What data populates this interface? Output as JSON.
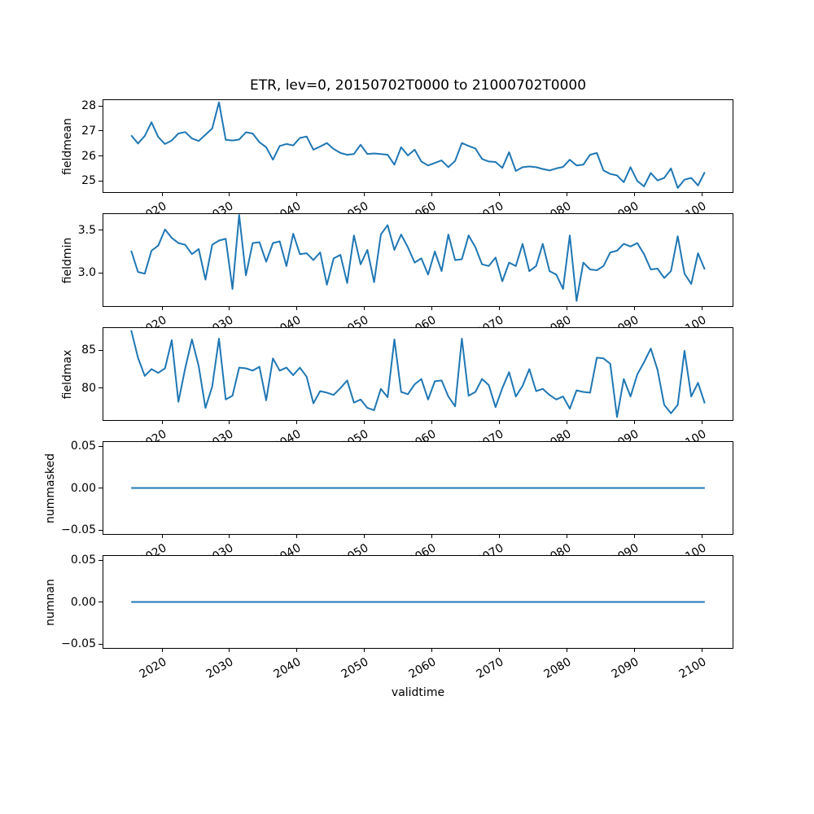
{
  "title": "ETR, lev=0, 20150702T0000 to 21000702T0000",
  "line_color": "#1f77b4",
  "x_axis": {
    "label": "validtime",
    "tick_labels": [
      "2020",
      "2030",
      "2040",
      "2050",
      "2060",
      "2070",
      "2080",
      "2090",
      "2100"
    ],
    "tick_values": [
      2020,
      2030,
      2040,
      2050,
      2060,
      2070,
      2080,
      2090,
      2100
    ],
    "xlim": [
      2011.25,
      2104.75
    ]
  },
  "chart_data": [
    {
      "type": "line",
      "name": "fieldmean",
      "ylabel": "fieldmean",
      "x_start": 2015,
      "x_step": 1,
      "x_offset": 0.5,
      "ylim": [
        24.52,
        28.27
      ],
      "ytick_values": [
        25,
        26,
        27,
        28
      ],
      "ytick_labels": [
        "25",
        "26",
        "27",
        "28"
      ],
      "values": [
        26.83,
        26.5,
        26.8,
        27.35,
        26.76,
        26.48,
        26.62,
        26.9,
        26.96,
        26.7,
        26.6,
        26.85,
        27.1,
        28.15,
        26.65,
        26.62,
        26.66,
        26.95,
        26.9,
        26.55,
        26.35,
        25.85,
        26.4,
        26.48,
        26.42,
        26.72,
        26.78,
        26.25,
        26.38,
        26.52,
        26.28,
        26.12,
        26.05,
        26.08,
        26.45,
        26.08,
        26.1,
        26.08,
        26.05,
        25.65,
        26.35,
        26.02,
        26.25,
        25.78,
        25.62,
        25.72,
        25.82,
        25.55,
        25.8,
        26.52,
        26.4,
        26.3,
        25.88,
        25.78,
        25.76,
        25.52,
        26.15,
        25.4,
        25.55,
        25.58,
        25.55,
        25.48,
        25.42,
        25.5,
        25.56,
        25.85,
        25.62,
        25.65,
        26.05,
        26.12,
        25.42,
        25.28,
        25.22,
        24.95,
        25.55,
        25.0,
        24.78,
        25.32,
        25.02,
        25.12,
        25.5,
        24.72,
        25.05,
        25.12,
        24.82,
        25.35
      ]
    },
    {
      "type": "line",
      "name": "fieldmin",
      "ylabel": "fieldmin",
      "x_start": 2015,
      "x_step": 1,
      "x_offset": 0.5,
      "ylim": [
        2.6,
        3.7
      ],
      "ytick_values": [
        3.0,
        3.5
      ],
      "ytick_labels": [
        "3.0",
        "3.5"
      ],
      "values": [
        3.26,
        3.01,
        2.99,
        3.26,
        3.32,
        3.51,
        3.41,
        3.35,
        3.33,
        3.22,
        3.28,
        2.92,
        3.33,
        3.38,
        3.4,
        2.81,
        3.68,
        2.97,
        3.35,
        3.36,
        3.13,
        3.35,
        3.37,
        3.08,
        3.46,
        3.22,
        3.23,
        3.15,
        3.24,
        2.86,
        3.17,
        3.21,
        2.88,
        3.44,
        3.1,
        3.27,
        2.89,
        3.45,
        3.56,
        3.27,
        3.45,
        3.3,
        3.12,
        3.17,
        2.98,
        3.25,
        3.02,
        3.45,
        3.15,
        3.16,
        3.44,
        3.3,
        3.1,
        3.08,
        3.18,
        2.9,
        3.12,
        3.08,
        3.34,
        3.02,
        3.08,
        3.34,
        3.02,
        2.98,
        2.81,
        3.44,
        2.67,
        3.12,
        3.04,
        3.03,
        3.08,
        3.24,
        3.26,
        3.34,
        3.31,
        3.35,
        3.22,
        3.04,
        3.05,
        2.94,
        3.02,
        3.43,
        2.99,
        2.87,
        3.23,
        3.04
      ]
    },
    {
      "type": "line",
      "name": "fieldmax",
      "ylabel": "fieldmax",
      "x_start": 2015,
      "x_step": 1,
      "x_offset": 0.5,
      "ylim": [
        75.7,
        88.0
      ],
      "ytick_values": [
        80,
        85
      ],
      "ytick_labels": [
        "80",
        "85"
      ],
      "values": [
        87.6,
        84.0,
        81.6,
        82.5,
        82.0,
        82.6,
        86.3,
        78.2,
        82.6,
        86.4,
        82.9,
        77.4,
        80.2,
        86.5,
        78.5,
        79.0,
        82.7,
        82.6,
        82.3,
        82.8,
        78.4,
        83.9,
        82.3,
        82.7,
        81.7,
        82.7,
        81.5,
        78.0,
        79.6,
        79.4,
        79.1,
        80.0,
        81.0,
        78.1,
        78.5,
        77.4,
        77.1,
        79.9,
        78.8,
        86.4,
        79.5,
        79.2,
        80.5,
        81.2,
        78.5,
        80.9,
        81.0,
        78.9,
        77.6,
        86.5,
        79.0,
        79.5,
        81.2,
        80.4,
        77.5,
        80.0,
        82.1,
        78.9,
        80.3,
        82.5,
        79.6,
        79.9,
        79.1,
        78.5,
        78.9,
        77.3,
        79.7,
        79.5,
        79.4,
        84.0,
        83.9,
        83.2,
        76.2,
        81.2,
        78.9,
        81.8,
        83.4,
        85.2,
        82.4,
        77.8,
        76.7,
        77.8,
        84.9,
        78.9,
        80.7,
        78.0
      ]
    },
    {
      "type": "line",
      "name": "nummasked",
      "ylabel": "nummasked",
      "x_start": 2015,
      "x_step": 1,
      "x_offset": 0.5,
      "ylim": [
        -0.0558,
        0.0558
      ],
      "ytick_values": [
        -0.05,
        0.0,
        0.05
      ],
      "ytick_labels": [
        "−0.05",
        "0.00",
        "0.05"
      ],
      "values": [
        0,
        0,
        0,
        0,
        0,
        0,
        0,
        0,
        0,
        0,
        0,
        0,
        0,
        0,
        0,
        0,
        0,
        0,
        0,
        0,
        0,
        0,
        0,
        0,
        0,
        0,
        0,
        0,
        0,
        0,
        0,
        0,
        0,
        0,
        0,
        0,
        0,
        0,
        0,
        0,
        0,
        0,
        0,
        0,
        0,
        0,
        0,
        0,
        0,
        0,
        0,
        0,
        0,
        0,
        0,
        0,
        0,
        0,
        0,
        0,
        0,
        0,
        0,
        0,
        0,
        0,
        0,
        0,
        0,
        0,
        0,
        0,
        0,
        0,
        0,
        0,
        0,
        0,
        0,
        0,
        0,
        0,
        0,
        0,
        0,
        0
      ]
    },
    {
      "type": "line",
      "name": "numnan",
      "ylabel": "numnan",
      "x_start": 2015,
      "x_step": 1,
      "x_offset": 0.5,
      "ylim": [
        -0.0558,
        0.0558
      ],
      "ytick_values": [
        -0.05,
        0.0,
        0.05
      ],
      "ytick_labels": [
        "−0.05",
        "0.00",
        "0.05"
      ],
      "values": [
        0,
        0,
        0,
        0,
        0,
        0,
        0,
        0,
        0,
        0,
        0,
        0,
        0,
        0,
        0,
        0,
        0,
        0,
        0,
        0,
        0,
        0,
        0,
        0,
        0,
        0,
        0,
        0,
        0,
        0,
        0,
        0,
        0,
        0,
        0,
        0,
        0,
        0,
        0,
        0,
        0,
        0,
        0,
        0,
        0,
        0,
        0,
        0,
        0,
        0,
        0,
        0,
        0,
        0,
        0,
        0,
        0,
        0,
        0,
        0,
        0,
        0,
        0,
        0,
        0,
        0,
        0,
        0,
        0,
        0,
        0,
        0,
        0,
        0,
        0,
        0,
        0,
        0,
        0,
        0,
        0,
        0,
        0,
        0,
        0,
        0
      ]
    }
  ]
}
